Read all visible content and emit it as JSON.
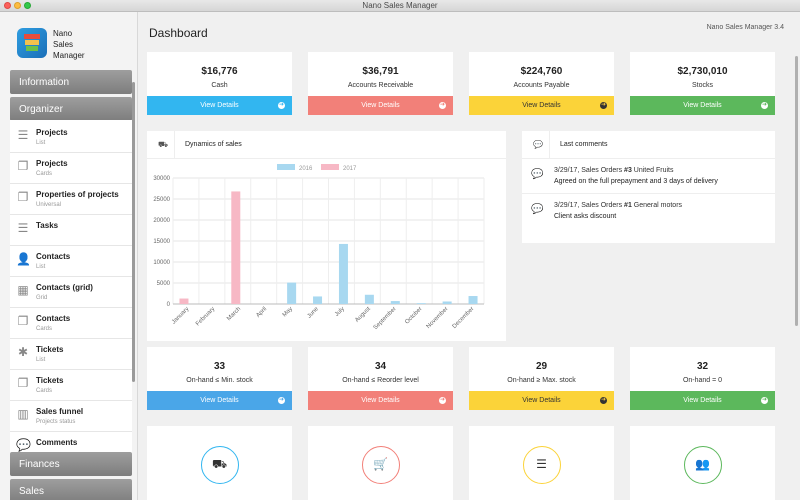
{
  "window": {
    "title": "Nano Sales Manager"
  },
  "app": {
    "logo_lines": [
      "Nano",
      "Sales",
      "Manager"
    ],
    "version": "Nano Sales Manager 3.4"
  },
  "sidebar": {
    "sections": [
      "Information",
      "Organizer",
      "Finances",
      "Sales"
    ],
    "items": [
      {
        "title": "Projects",
        "subtitle": "List",
        "icon": "list-icon"
      },
      {
        "title": "Projects",
        "subtitle": "Cards",
        "icon": "cards-icon"
      },
      {
        "title": "Properties of projects",
        "subtitle": "Universal",
        "icon": "cards-icon"
      },
      {
        "title": "Tasks",
        "subtitle": "",
        "icon": "list-icon"
      },
      {
        "title": "Contacts",
        "subtitle": "List",
        "icon": "person-icon"
      },
      {
        "title": "Contacts (grid)",
        "subtitle": "Grid",
        "icon": "grid-icon"
      },
      {
        "title": "Contacts",
        "subtitle": "Cards",
        "icon": "cards-icon"
      },
      {
        "title": "Tickets",
        "subtitle": "List",
        "icon": "bug-icon"
      },
      {
        "title": "Tickets",
        "subtitle": "Cards",
        "icon": "cards-icon"
      },
      {
        "title": "Sales funnel",
        "subtitle": "Projects status",
        "icon": "bar-chart-icon"
      },
      {
        "title": "Comments",
        "subtitle": "",
        "icon": "speech-bubble-icon"
      }
    ]
  },
  "main": {
    "title": "Dashboard",
    "view_details": "View Details",
    "stats": [
      {
        "value": "$16,776",
        "label": "Cash",
        "color": "#32b6f0"
      },
      {
        "value": "$36,791",
        "label": "Accounts Receivable",
        "color": "#f28079"
      },
      {
        "value": "$224,760",
        "label": "Accounts Payable",
        "color": "#fbd339"
      },
      {
        "value": "$2,730,010",
        "label": "Stocks",
        "color": "#5cb85c"
      }
    ],
    "stock_stats": [
      {
        "value": "33",
        "label": "On-hand ≤ Min. stock",
        "color": "#4aa6e8"
      },
      {
        "value": "34",
        "label": "On-hand ≤ Reorder level",
        "color": "#f28079"
      },
      {
        "value": "29",
        "label": "On-hand ≥ Max. stock",
        "color": "#fbd339"
      },
      {
        "value": "32",
        "label": "On-hand = 0",
        "color": "#5cb85c"
      }
    ],
    "sales_panel": {
      "title": "Dynamics of sales"
    },
    "comments_panel": {
      "title": "Last comments",
      "items": [
        {
          "meta_prefix": "3/29/17, Sales Orders ",
          "order": "#3",
          "meta_suffix": " United Fruits",
          "text": "Agreed on the full prepayment and 3 days of delivery"
        },
        {
          "meta_prefix": "3/29/17, Sales Orders ",
          "order": "#1",
          "meta_suffix": " General motors",
          "text": "Client asks discount"
        }
      ]
    },
    "bottom_icons": [
      {
        "icon": "truck-icon",
        "color": "#32b6f0"
      },
      {
        "icon": "cart-icon",
        "color": "#f28079"
      },
      {
        "icon": "server-icon",
        "color": "#fbd339"
      },
      {
        "icon": "users-icon",
        "color": "#5cb85c"
      }
    ]
  },
  "chart_data": {
    "type": "bar",
    "categories": [
      "January",
      "February",
      "March",
      "April",
      "May",
      "June",
      "July",
      "August",
      "September",
      "October",
      "November",
      "December"
    ],
    "series": [
      {
        "name": "2016",
        "color": "#a8d8f0",
        "values": [
          0,
          0,
          0,
          0,
          5100,
          1800,
          14300,
          2200,
          700,
          200,
          600,
          1900
        ]
      },
      {
        "name": "2017",
        "color": "#f7b8c5",
        "values": [
          1300,
          0,
          26800,
          0,
          0,
          0,
          0,
          0,
          0,
          0,
          0,
          0
        ]
      }
    ],
    "ylim": [
      0,
      30000
    ],
    "yticks": [
      0,
      5000,
      10000,
      15000,
      20000,
      25000,
      30000
    ],
    "legend": "top",
    "grid": true
  }
}
